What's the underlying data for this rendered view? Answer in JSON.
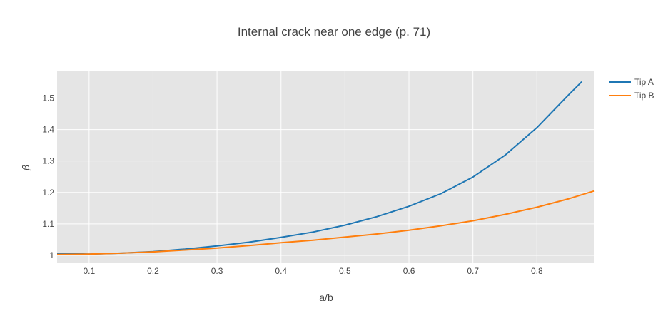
{
  "chart_data": {
    "type": "line",
    "title": "Internal crack near one edge (p. 71)",
    "xlabel": "a/b",
    "ylabel": "β",
    "xlim": [
      0.05,
      0.89
    ],
    "ylim": [
      0.975,
      1.585
    ],
    "x_ticks": [
      0.1,
      0.2,
      0.3,
      0.4,
      0.5,
      0.6,
      0.7,
      0.8
    ],
    "x_tick_labels": [
      "0.1",
      "0.2",
      "0.3",
      "0.4",
      "0.5",
      "0.6",
      "0.7",
      "0.8"
    ],
    "y_ticks": [
      1,
      1.1,
      1.2,
      1.3,
      1.4,
      1.5
    ],
    "y_tick_labels": [
      "1",
      "1.1",
      "1.2",
      "1.3",
      "1.4",
      "1.5"
    ],
    "grid": true,
    "legend_position": "top-right",
    "colors": {
      "plot_bg": "#e5e5e5",
      "grid": "#ffffff"
    },
    "series": [
      {
        "name": "Tip A",
        "color": "#1f77b4",
        "x": [
          0.05,
          0.08,
          0.1,
          0.15,
          0.2,
          0.25,
          0.3,
          0.35,
          0.4,
          0.45,
          0.5,
          0.55,
          0.6,
          0.65,
          0.7,
          0.75,
          0.8,
          0.85,
          0.87
        ],
        "y": [
          1.006,
          1.005,
          1.004,
          1.007,
          1.012,
          1.02,
          1.03,
          1.042,
          1.057,
          1.074,
          1.096,
          1.123,
          1.156,
          1.196,
          1.249,
          1.318,
          1.406,
          1.511,
          1.552
        ]
      },
      {
        "name": "Tip B",
        "color": "#ff7f0e",
        "x": [
          0.05,
          0.1,
          0.15,
          0.2,
          0.25,
          0.3,
          0.35,
          0.4,
          0.45,
          0.5,
          0.55,
          0.6,
          0.65,
          0.7,
          0.75,
          0.8,
          0.85,
          0.89
        ],
        "y": [
          1.003,
          1.004,
          1.007,
          1.011,
          1.017,
          1.023,
          1.031,
          1.04,
          1.048,
          1.058,
          1.068,
          1.08,
          1.094,
          1.11,
          1.13,
          1.153,
          1.18,
          1.205
        ]
      }
    ]
  }
}
